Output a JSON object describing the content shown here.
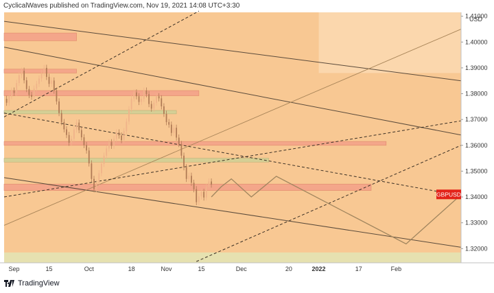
{
  "header": {
    "text": "CyclicalWaves published on TradingView.com, Nov 19, 2021 14:08 UTC+3:30"
  },
  "footer": {
    "brand": "TradingView",
    "logo_icon": "tradingview-logo-icon"
  },
  "colors": {
    "chart_bg": "#f8c893",
    "future_zone": "#fbd7ad",
    "candle_up": "#f0b38a",
    "candle_down": "#b07a55",
    "zone_red": "#f4a68a",
    "zone_green": "#d5cf95",
    "price_tag": "#e32219",
    "trendline": "#5a4a3a",
    "fan_line": "#a88458",
    "bottom_band": "#e6e1b0"
  },
  "chart_data": {
    "type": "candlestick",
    "symbol": "GBPUSD",
    "currency": "USD",
    "last_price": 1.341,
    "price_tag_label": "GBPUSD",
    "ylim": [
      1.3145,
      1.4115
    ],
    "y_ticks": [
      {
        "value": 1.41,
        "label": "1.41000"
      },
      {
        "value": 1.4,
        "label": "1.40000"
      },
      {
        "value": 1.39,
        "label": "1.39000"
      },
      {
        "value": 1.38,
        "label": "1.38000"
      },
      {
        "value": 1.37,
        "label": "1.37000"
      },
      {
        "value": 1.36,
        "label": "1.36000"
      },
      {
        "value": 1.35,
        "label": "1.35000"
      },
      {
        "value": 1.34,
        "label": "1.34000"
      },
      {
        "value": 1.33,
        "label": "1.33000"
      },
      {
        "value": 1.32,
        "label": "1.32000"
      }
    ],
    "x_ticks": [
      {
        "date": "2021-09-01",
        "label": "Sep",
        "bold": false
      },
      {
        "date": "2021-09-15",
        "label": "15",
        "bold": false
      },
      {
        "date": "2021-10-01",
        "label": "Oct",
        "bold": false
      },
      {
        "date": "2021-10-18",
        "label": "18",
        "bold": false
      },
      {
        "date": "2021-11-01",
        "label": "Nov",
        "bold": false
      },
      {
        "date": "2021-11-15",
        "label": "15",
        "bold": false
      },
      {
        "date": "2021-12-01",
        "label": "Dec",
        "bold": false
      },
      {
        "date": "2021-12-20",
        "label": "20",
        "bold": false
      },
      {
        "date": "2022-01-01",
        "label": "2022",
        "bold": true
      },
      {
        "date": "2022-01-17",
        "label": "17",
        "bold": false
      },
      {
        "date": "2022-02-01",
        "label": "Feb",
        "bold": false
      }
    ],
    "x_range": [
      "2021-08-28",
      "2022-02-27"
    ],
    "last_candle_date": "2021-11-19",
    "future_zone_start": "2022-01-01",
    "closes": [
      1.3765,
      1.379,
      1.3812,
      1.3803,
      1.3841,
      1.3872,
      1.3889,
      1.3852,
      1.3818,
      1.3795,
      1.3788,
      1.382,
      1.3838,
      1.3859,
      1.388,
      1.39,
      1.3865,
      1.3838,
      1.3851,
      1.3812,
      1.377,
      1.3725,
      1.369,
      1.3662,
      1.364,
      1.361,
      1.3625,
      1.3661,
      1.3688,
      1.3659,
      1.3631,
      1.3601,
      1.358,
      1.353,
      1.347,
      1.343,
      1.3455,
      1.3492,
      1.3528,
      1.356,
      1.3588,
      1.3612,
      1.3598,
      1.3625,
      1.365,
      1.3638,
      1.362,
      1.3655,
      1.3692,
      1.374,
      1.3781,
      1.3805,
      1.379,
      1.3768,
      1.378,
      1.3812,
      1.3798,
      1.376,
      1.3742,
      1.3765,
      1.379,
      1.3782,
      1.3751,
      1.3722,
      1.369,
      1.368,
      1.3648,
      1.3668,
      1.363,
      1.3605,
      1.356,
      1.3515,
      1.347,
      1.3482,
      1.3455,
      1.343,
      1.338,
      1.3402,
      1.342,
      1.3398,
      1.344,
      1.346,
      1.3448
    ],
    "projection_path": [
      {
        "date": "2021-11-19",
        "value": 1.34
      },
      {
        "date": "2021-11-23",
        "value": 1.344
      },
      {
        "date": "2021-11-27",
        "value": 1.347
      },
      {
        "date": "2021-12-05",
        "value": 1.34
      },
      {
        "date": "2021-12-15",
        "value": 1.348
      },
      {
        "date": "2022-02-05",
        "value": 1.3218
      },
      {
        "date": "2022-02-26",
        "value": 1.34
      }
    ],
    "zones": [
      {
        "name": "zone-red-upper",
        "color": "red",
        "from": "2021-08-28",
        "to": "2021-09-26",
        "top": 1.4035,
        "bottom": 1.4005
      },
      {
        "name": "zone-red-1390",
        "color": "red",
        "from": "2021-08-28",
        "to": "2021-09-26",
        "top": 1.3895,
        "bottom": 1.388
      },
      {
        "name": "zone-red-1380",
        "color": "red",
        "from": "2021-08-28",
        "to": "2021-11-14",
        "top": 1.3812,
        "bottom": 1.3792
      },
      {
        "name": "zone-green-1373",
        "color": "green",
        "from": "2021-08-28",
        "to": "2021-11-05",
        "top": 1.3735,
        "bottom": 1.3722
      },
      {
        "name": "zone-red-1361",
        "color": "red",
        "from": "2021-08-28",
        "to": "2022-01-28",
        "top": 1.3615,
        "bottom": 1.36
      },
      {
        "name": "zone-green-1354",
        "color": "green",
        "from": "2021-08-28",
        "to": "2021-12-12",
        "top": 1.355,
        "bottom": 1.3535
      },
      {
        "name": "zone-red-1344",
        "color": "red",
        "from": "2021-08-28",
        "to": "2022-01-22",
        "top": 1.345,
        "bottom": 1.3425
      }
    ],
    "trendlines": [
      {
        "name": "trendline-upper",
        "style": "solid",
        "from": {
          "date": "2021-08-28",
          "value": 1.408
        },
        "to": {
          "date": "2022-02-27",
          "value": 1.385
        }
      },
      {
        "name": "trendline-mid",
        "style": "solid",
        "from": {
          "date": "2021-08-28",
          "value": 1.398
        },
        "to": {
          "date": "2022-02-27",
          "value": 1.364
        }
      },
      {
        "name": "trendline-lower",
        "style": "solid",
        "from": {
          "date": "2021-08-28",
          "value": 1.3475
        },
        "to": {
          "date": "2022-02-27",
          "value": 1.3205
        }
      },
      {
        "name": "trendline-rising",
        "style": "solid",
        "from": {
          "date": "2021-08-28",
          "value": 1.329
        },
        "to": {
          "date": "2022-02-27",
          "value": 1.405
        }
      },
      {
        "name": "dashed-declining",
        "style": "dashed",
        "from": {
          "date": "2021-08-28",
          "value": 1.3725
        },
        "to": {
          "date": "2022-02-27",
          "value": 1.3405
        }
      },
      {
        "name": "dashed-rising-steep",
        "style": "dashed",
        "from": {
          "date": "2021-08-28",
          "value": 1.371
        },
        "to": {
          "date": "2021-11-14",
          "value": 1.412
        }
      },
      {
        "name": "dashed-rising-mid",
        "style": "dashed",
        "from": {
          "date": "2021-08-28",
          "value": 1.34
        },
        "to": {
          "date": "2022-02-27",
          "value": 1.3695
        }
      },
      {
        "name": "dashed-rising-low",
        "style": "dashed",
        "from": {
          "date": "2021-11-13",
          "value": 1.315
        },
        "to": {
          "date": "2022-02-27",
          "value": 1.36
        }
      }
    ]
  }
}
